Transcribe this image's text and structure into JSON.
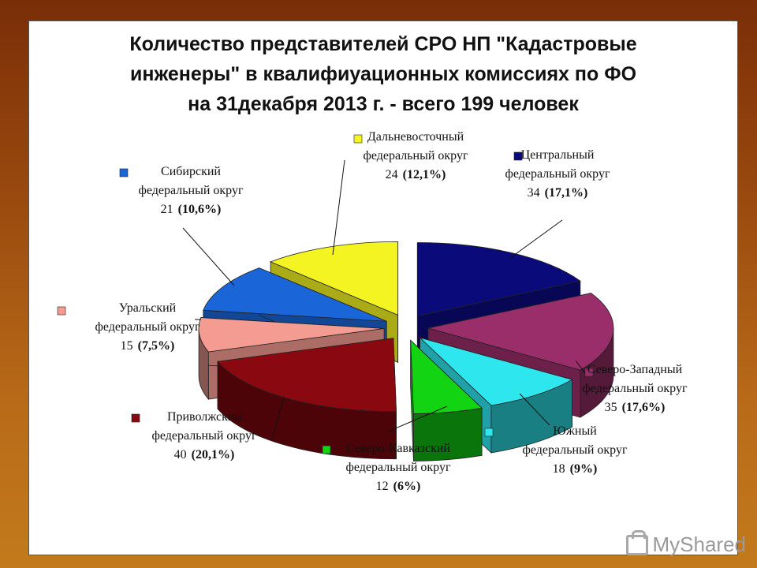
{
  "chart_data": {
    "type": "pie",
    "title_lines": [
      "Количество представителей СРО НП \"Кадастровые",
      "инженеры\" в квалифиуационных комиссиях по ФО",
      "на 31декабря  2013 г. - всего 199 человек"
    ],
    "slices": [
      {
        "id": "central",
        "line1": "Центральный",
        "line2": "федеральный округ",
        "count": "34",
        "pct": "(17,1%)",
        "value": 34,
        "color": "#0a0a7a"
      },
      {
        "id": "northwest",
        "line1": "Северо-Западный",
        "line2": "федеральный округ",
        "count": "35",
        "pct": "(17,6%)",
        "value": 35,
        "color": "#9a2e6a"
      },
      {
        "id": "south",
        "line1": "Южный",
        "line2": "федеральный округ",
        "count": "18",
        "pct": "(9%)",
        "value": 18,
        "color": "#2ee6ee"
      },
      {
        "id": "ncaucasus",
        "line1": "Северо-Кавказский",
        "line2": "федеральный округ",
        "count": "12",
        "pct": "(6%)",
        "value": 12,
        "color": "#12d412"
      },
      {
        "id": "volga",
        "line1": "Приволжский",
        "line2": "федеральный округ",
        "count": "40",
        "pct": "(20,1%)",
        "value": 40,
        "color": "#8a0810"
      },
      {
        "id": "ural",
        "line1": "Уральский",
        "line2": "федеральный округ",
        "count": "15",
        "pct": "(7,5%)",
        "value": 15,
        "color": "#f49c92"
      },
      {
        "id": "siberia",
        "line1": "Сибирский",
        "line2": "федеральный округ",
        "count": "21",
        "pct": "(10,6%)",
        "value": 21,
        "color": "#1a66d8"
      },
      {
        "id": "fareast",
        "line1": "Дальневосточный",
        "line2": "федеральный округ",
        "count": "24",
        "pct": "(12,1%)",
        "value": 24,
        "color": "#f4f422"
      }
    ]
  },
  "watermark": {
    "text": "MyShared",
    "icon": "mysharedlogo-icon"
  }
}
